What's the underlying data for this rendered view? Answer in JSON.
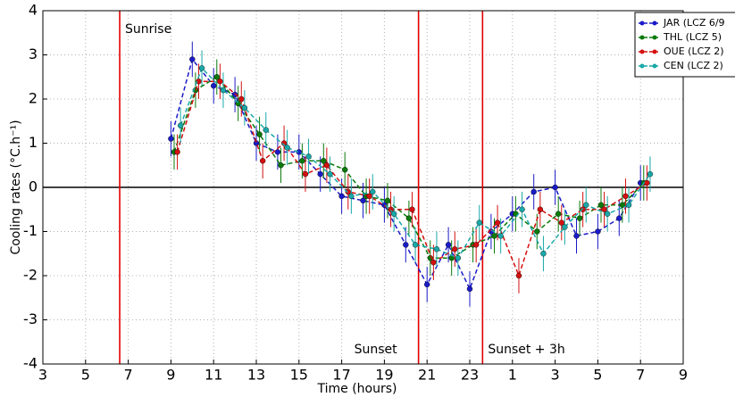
{
  "chart_data": {
    "type": "line",
    "x_label": "Time (hours)",
    "y_label": "Cooling rates (°C.h⁻¹)",
    "xlim": [
      3,
      33
    ],
    "ylim": [
      -4,
      4
    ],
    "xticks": [
      3,
      5,
      7,
      9,
      11,
      13,
      15,
      17,
      19,
      21,
      23,
      {
        "value": 25,
        "label": "1"
      },
      {
        "value": 27,
        "label": "3"
      },
      {
        "value": 29,
        "label": "5"
      },
      {
        "value": 31,
        "label": "7"
      },
      {
        "value": 33,
        "label": "9"
      }
    ],
    "yticks": [
      -4,
      -3,
      -2,
      -1,
      0,
      1,
      2,
      3,
      4
    ],
    "grid": true,
    "hline": 0,
    "vlines": [
      {
        "value": 6.6,
        "label": "Sunrise"
      },
      {
        "value": 20.6,
        "label": "Sunset"
      },
      {
        "value": 23.6,
        "label": "Sunset + 3h"
      }
    ],
    "vline_color": "#e00000",
    "legend": "upper right",
    "series": [
      {
        "name": "JAR (LCZ 6/9",
        "color": "#1a1ac8",
        "x": [
          9,
          10,
          11,
          12,
          13,
          14,
          15,
          16,
          17,
          18,
          19,
          20,
          21,
          22,
          23,
          24,
          25,
          26,
          27,
          28,
          29,
          30,
          31
        ],
        "values": [
          1.1,
          2.9,
          2.3,
          2.1,
          1.0,
          0.8,
          0.8,
          0.3,
          -0.2,
          -0.3,
          -0.4,
          -1.3,
          -2.2,
          -1.3,
          -2.3,
          -1.0,
          -0.6,
          -0.1,
          0.0,
          -1.1,
          -1.0,
          -0.7,
          0.1
        ],
        "errors": [
          0.4,
          0.4,
          0.4,
          0.4,
          0.4,
          0.4,
          0.4,
          0.4,
          0.4,
          0.4,
          0.4,
          0.4,
          0.4,
          0.4,
          0.4,
          0.4,
          0.4,
          0.4,
          0.4,
          0.4,
          0.4,
          0.4,
          0.4
        ]
      },
      {
        "name": "THL (LCZ 5)",
        "color": "#0a7a0a",
        "x": [
          9.15,
          10.15,
          11.15,
          12.15,
          13.15,
          14.15,
          15.15,
          16.15,
          17.15,
          18.15,
          19.15,
          20.15,
          21.15,
          22.15,
          23.15,
          24.15,
          25.15,
          26.15,
          27.15,
          28.15,
          29.15,
          30.15,
          31.15
        ],
        "values": [
          0.8,
          2.2,
          2.5,
          1.9,
          1.2,
          0.5,
          0.6,
          0.6,
          0.4,
          -0.2,
          -0.3,
          -0.7,
          -1.6,
          -1.6,
          -1.3,
          -1.1,
          -0.6,
          -1.0,
          -0.6,
          -0.7,
          -0.4,
          -0.4,
          0.1
        ],
        "errors": [
          0.4,
          0.4,
          0.4,
          0.4,
          0.4,
          0.4,
          0.4,
          0.4,
          0.4,
          0.4,
          0.4,
          0.4,
          0.4,
          0.4,
          0.4,
          0.4,
          0.4,
          0.4,
          0.4,
          0.4,
          0.4,
          0.4,
          0.4
        ]
      },
      {
        "name": "OUE (LCZ 2)",
        "color": "#d41010",
        "x": [
          9.3,
          10.3,
          11.3,
          12.3,
          13.3,
          14.3,
          15.3,
          16.3,
          17.3,
          18.3,
          19.3,
          20.3,
          21.3,
          22.3,
          23.3,
          24.3,
          25.3,
          26.3,
          27.3,
          28.3,
          29.3,
          30.3,
          31.3
        ],
        "values": [
          0.8,
          2.4,
          2.4,
          2.0,
          0.6,
          1.0,
          0.3,
          0.5,
          -0.1,
          -0.2,
          -0.5,
          -0.5,
          -1.7,
          -1.4,
          -1.3,
          -0.8,
          -2.0,
          -0.5,
          -0.8,
          -0.5,
          -0.5,
          -0.2,
          0.1
        ],
        "errors": [
          0.4,
          0.4,
          0.4,
          0.4,
          0.4,
          0.4,
          0.4,
          0.4,
          0.4,
          0.4,
          0.4,
          0.4,
          0.4,
          0.4,
          0.4,
          0.4,
          0.4,
          0.4,
          0.4,
          0.4,
          0.4,
          0.4,
          0.4
        ]
      },
      {
        "name": "CEN (LCZ 2)",
        "color": "#1aa8a8",
        "x": [
          9.45,
          10.45,
          11.45,
          12.45,
          13.45,
          14.45,
          15.45,
          16.45,
          17.45,
          18.45,
          19.45,
          20.45,
          21.45,
          22.45,
          23.45,
          24.45,
          25.45,
          26.45,
          27.45,
          28.45,
          29.45,
          30.45,
          31.45
        ],
        "values": [
          1.4,
          2.7,
          2.2,
          1.8,
          1.3,
          0.9,
          0.7,
          0.3,
          -0.2,
          -0.1,
          -0.6,
          -1.3,
          -1.4,
          -1.6,
          -0.8,
          -1.1,
          -0.5,
          -1.5,
          -0.9,
          -0.4,
          -0.6,
          -0.4,
          0.3
        ],
        "errors": [
          0.4,
          0.4,
          0.4,
          0.4,
          0.4,
          0.4,
          0.4,
          0.4,
          0.4,
          0.4,
          0.4,
          0.4,
          0.4,
          0.4,
          0.4,
          0.4,
          0.4,
          0.4,
          0.4,
          0.4,
          0.4,
          0.4,
          0.4
        ]
      }
    ]
  }
}
